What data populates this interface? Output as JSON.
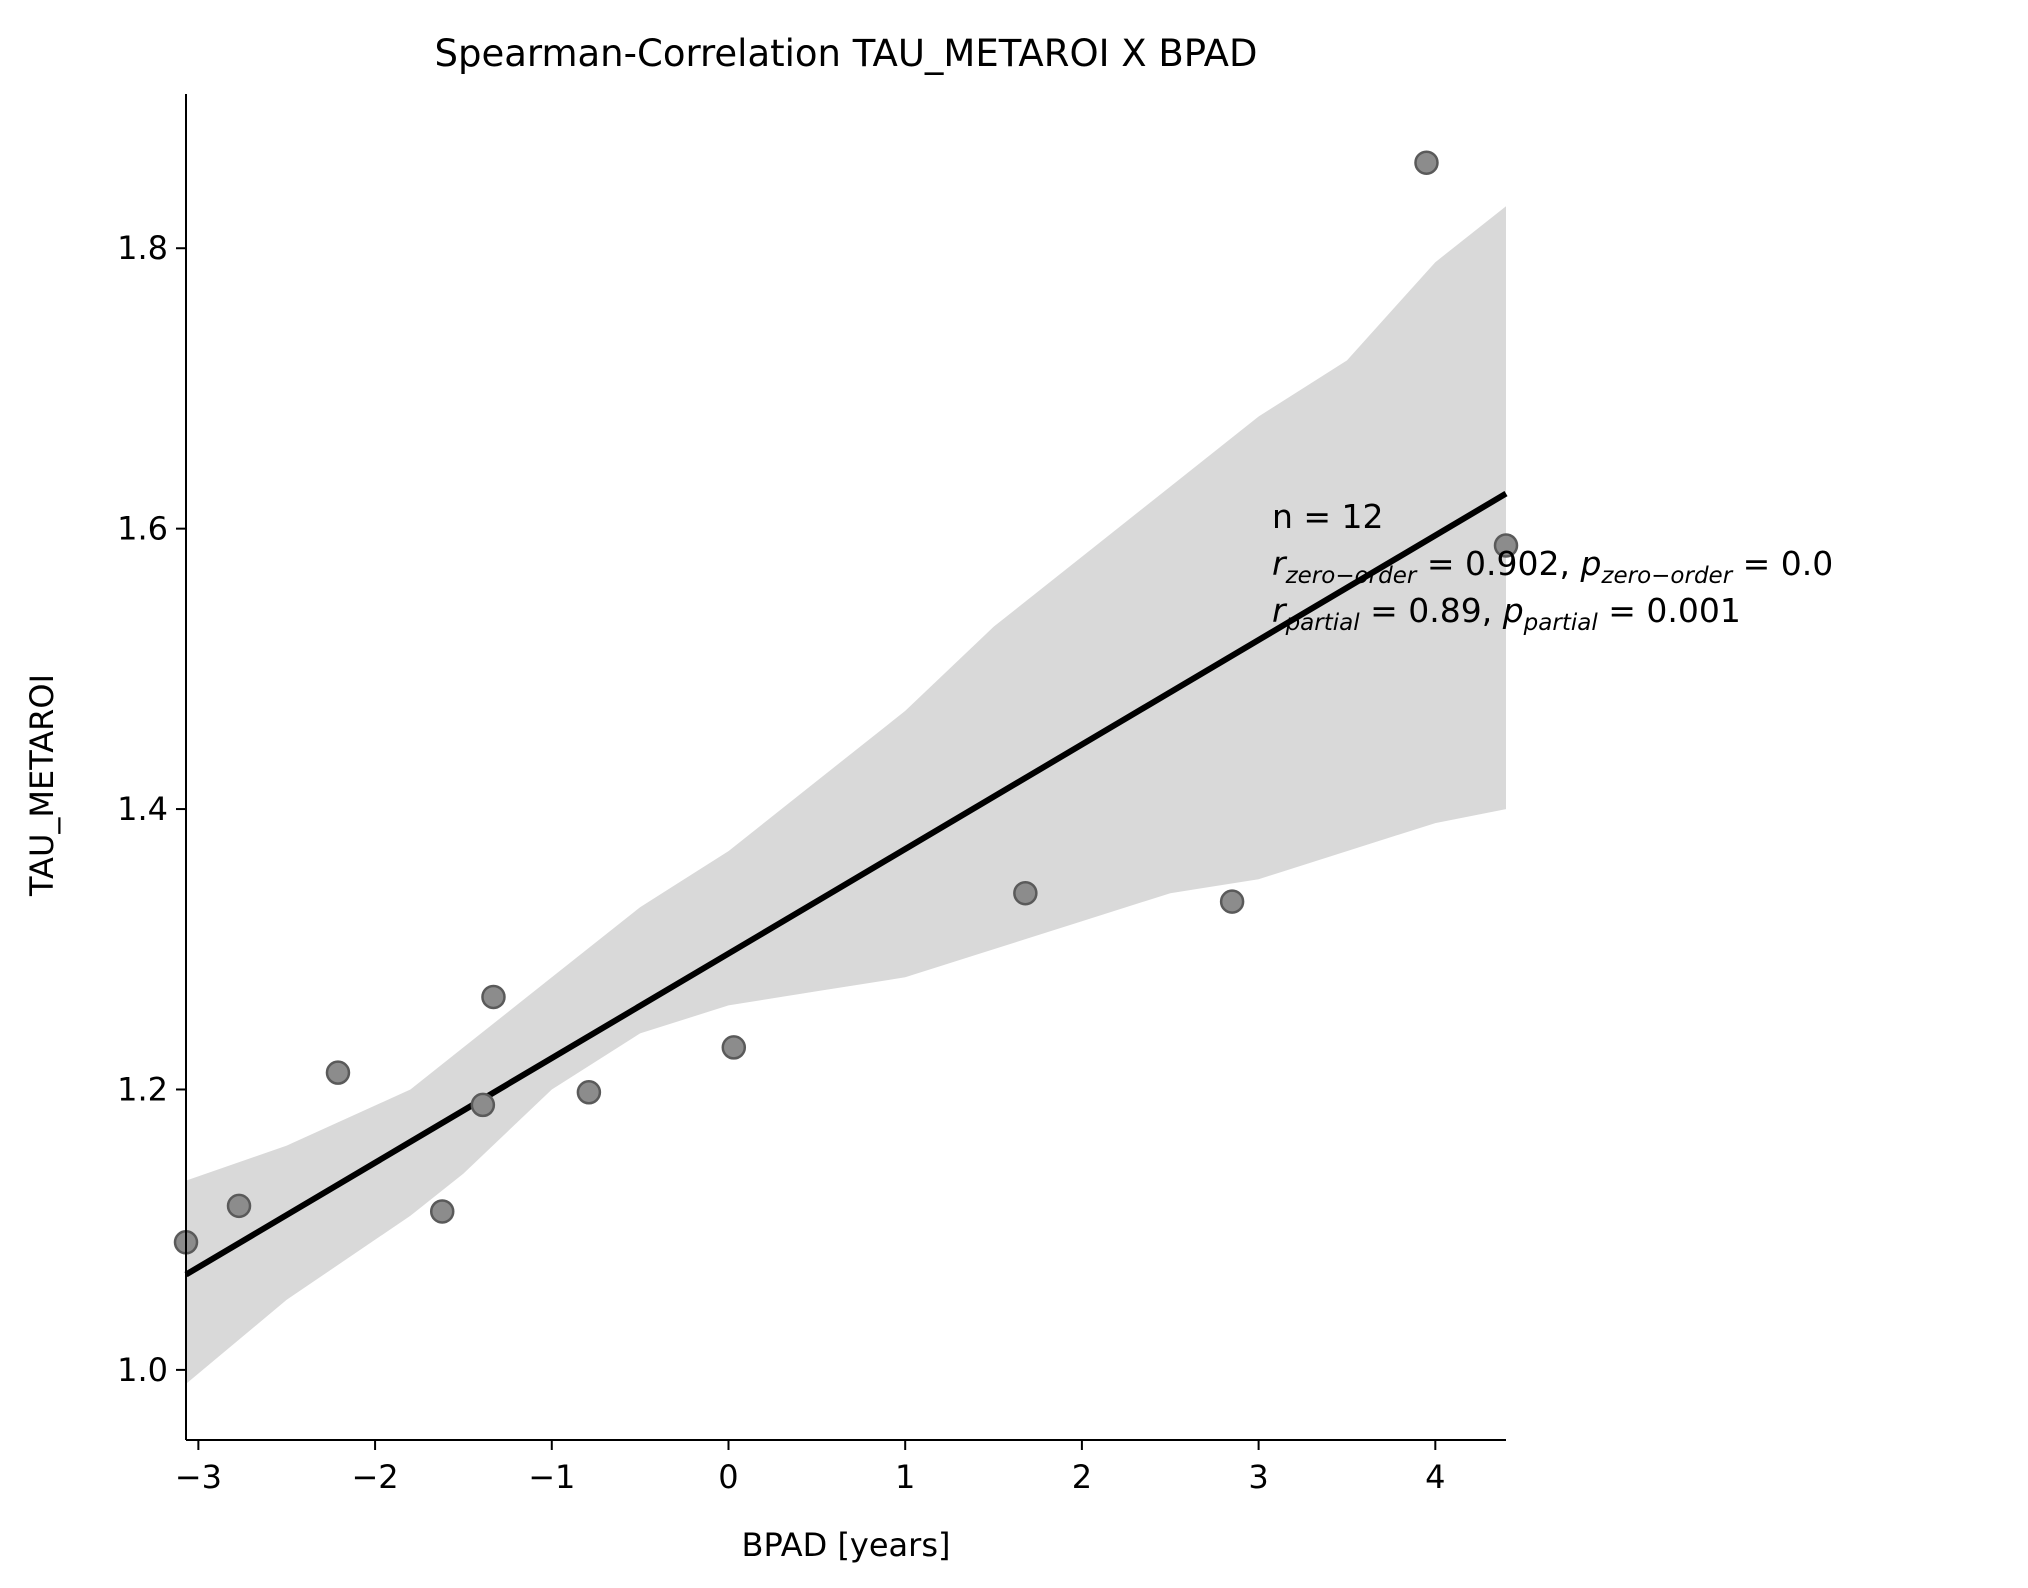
{
  "chart_data": {
    "type": "scatter",
    "title": "Spearman-Correlation TAU_METAROI X BPAD",
    "xlabel": "BPAD [years]",
    "ylabel": "TAU_METAROI",
    "xlim": [
      -3.07,
      4.4
    ],
    "ylim": [
      0.95,
      1.91
    ],
    "xticks": [
      -3,
      -2,
      -1,
      0,
      1,
      2,
      3,
      4
    ],
    "xtick_labels": [
      "−3",
      "−2",
      "−1",
      "0",
      "1",
      "2",
      "3",
      "4"
    ],
    "yticks": [
      1.0,
      1.2,
      1.4,
      1.6,
      1.8
    ],
    "ytick_labels": [
      "1.0",
      "1.2",
      "1.4",
      "1.6",
      "1.8"
    ],
    "grid": false,
    "points": [
      {
        "x": -3.07,
        "y": 1.091
      },
      {
        "x": -2.77,
        "y": 1.117
      },
      {
        "x": -2.21,
        "y": 1.212
      },
      {
        "x": -1.62,
        "y": 1.113
      },
      {
        "x": -1.39,
        "y": 1.189
      },
      {
        "x": -1.33,
        "y": 1.266
      },
      {
        "x": -0.79,
        "y": 1.198
      },
      {
        "x": 0.03,
        "y": 1.23
      },
      {
        "x": 1.68,
        "y": 1.34
      },
      {
        "x": 2.85,
        "y": 1.334
      },
      {
        "x": 3.95,
        "y": 1.861
      },
      {
        "x": 4.4,
        "y": 1.588
      }
    ],
    "regression_line": {
      "x": [
        -3.07,
        4.4
      ],
      "y": [
        1.068,
        1.625
      ]
    },
    "confidence_band": {
      "x": [
        -3.07,
        -2.5,
        -1.8,
        -1.5,
        -1.0,
        -0.5,
        0.0,
        0.5,
        1.0,
        1.5,
        2.0,
        2.5,
        3.0,
        3.5,
        4.0,
        4.4
      ],
      "lower": [
        0.99,
        1.05,
        1.11,
        1.14,
        1.2,
        1.24,
        1.26,
        1.27,
        1.28,
        1.3,
        1.32,
        1.34,
        1.35,
        1.37,
        1.39,
        1.4
      ],
      "upper": [
        1.135,
        1.16,
        1.2,
        1.23,
        1.28,
        1.33,
        1.37,
        1.42,
        1.47,
        1.53,
        1.58,
        1.63,
        1.68,
        1.72,
        1.79,
        1.83
      ]
    },
    "colors": {
      "points_fill": "#8c8c8c",
      "points_edge": "#5a5a5a",
      "line": "#000000",
      "band": "#d9d9d9"
    },
    "annotation": {
      "line1": "n = 12",
      "line2": {
        "r_base": "r",
        "r_sub": "zero−order",
        "r_val": " = 0.902, ",
        "p_base": "p",
        "p_sub": "zero−order",
        "p_val": " = 0.0"
      },
      "line3": {
        "r_base": "r",
        "r_sub": "partial",
        "r_val": " = 0.89, ",
        "p_base": "p",
        "p_sub": "partial",
        "p_val": " = 0.001"
      }
    }
  }
}
